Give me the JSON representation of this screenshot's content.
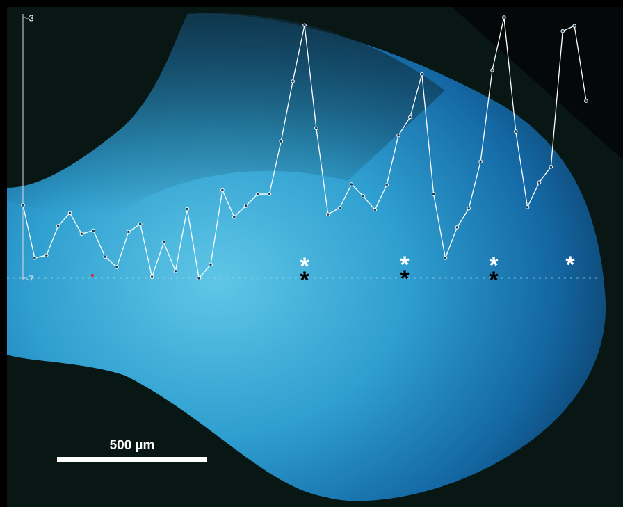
{
  "chart_data": {
    "type": "line",
    "categories": [
      null,
      null,
      null,
      null,
      null,
      null,
      null,
      null,
      null,
      null,
      null,
      null,
      null,
      null,
      null,
      null,
      null,
      null,
      null,
      null,
      null,
      null,
      null,
      null,
      null,
      null,
      null,
      null,
      null,
      null,
      null,
      null,
      null,
      null,
      null,
      null,
      null,
      null,
      null,
      null,
      null,
      null,
      null,
      null,
      null,
      null,
      null,
      null,
      null
    ],
    "values": [
      -5.88,
      -6.69,
      -6.65,
      -6.2,
      -6.0,
      -6.32,
      -6.27,
      -6.67,
      -6.83,
      -6.29,
      -6.17,
      -6.98,
      -6.45,
      -6.89,
      -5.94,
      -7.0,
      -6.79,
      -5.65,
      -6.06,
      -5.89,
      -5.71,
      -5.71,
      -4.9,
      -3.98,
      -3.12,
      -4.7,
      -6.02,
      -5.92,
      -5.56,
      -5.74,
      -5.95,
      -5.57,
      -4.81,
      -4.53,
      -3.87,
      -5.71,
      -6.69,
      -6.22,
      -5.93,
      -5.21,
      -3.81,
      -3.0,
      -4.75,
      -5.91,
      -5.53,
      -5.29,
      -3.21,
      -3.13,
      -4.28
    ],
    "color": "#ffffff",
    "ylim": [
      -7,
      -3
    ],
    "yticks": [
      -7,
      -3
    ],
    "annotations": [
      "*",
      "*",
      "*",
      "*",
      "*",
      "*",
      "*"
    ],
    "scale_bar_label": "500 µm"
  }
}
